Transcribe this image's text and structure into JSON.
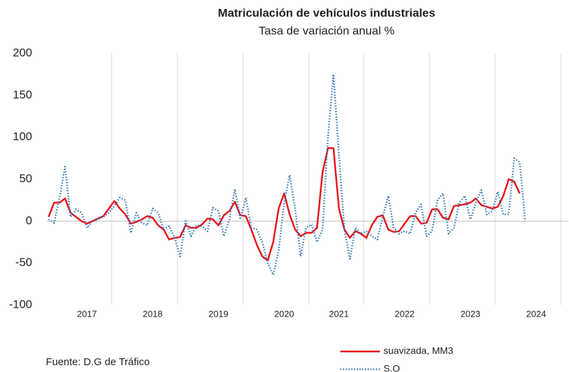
{
  "chart_data": {
    "type": "line",
    "title": "Matriculación de vehículos industriales",
    "subtitle": "Tasa de variación anual %",
    "source": "Fuente: D.G de Tráfico",
    "categories": [
      null,
      null,
      null,
      null,
      null,
      null,
      null,
      "2017",
      null,
      null,
      null,
      null,
      null,
      null,
      null,
      null,
      null,
      null,
      null,
      "2018",
      null,
      null,
      null,
      null,
      null,
      null,
      null,
      null,
      null,
      null,
      null,
      "2019",
      null,
      null,
      null,
      null,
      null,
      null,
      null,
      null,
      null,
      null,
      null,
      "2020",
      null,
      null,
      null,
      null,
      null,
      null,
      null,
      null,
      null,
      "2021",
      null,
      null,
      null,
      null,
      null,
      null,
      null,
      null,
      null,
      null,
      null,
      "2022",
      null,
      null,
      null,
      null,
      null,
      null,
      null,
      null,
      null,
      null,
      null,
      "2023",
      null,
      null,
      null,
      null,
      null,
      null,
      null,
      null,
      null,
      null,
      null,
      "2024"
    ],
    "series": [
      {
        "name": "suavizada, MM3",
        "color": "#e8141b",
        "style": "solid",
        "values": [
          5,
          22,
          22,
          27,
          10,
          5,
          0,
          -3,
          0,
          3,
          6,
          15,
          24,
          15,
          8,
          -3,
          -1,
          2,
          6,
          4,
          -5,
          -10,
          -22,
          -20,
          -19,
          -5,
          -8,
          -8,
          -4,
          3,
          2,
          -5,
          7,
          12,
          23,
          7,
          6,
          -10,
          -28,
          -42,
          -47,
          -25,
          15,
          33,
          8,
          -10,
          -18,
          -14,
          -14,
          -8,
          58,
          87,
          87,
          15,
          -10,
          -20,
          -12,
          -15,
          -20,
          -5,
          5,
          7,
          -10,
          -13,
          -12,
          -3,
          6,
          6,
          -3,
          -2,
          14,
          14,
          4,
          2,
          18,
          19,
          20,
          22,
          27,
          19,
          17,
          15,
          17,
          30,
          50,
          47,
          33,
          null,
          null,
          null
        ]
      },
      {
        "name": "S.O",
        "color": "#2e75b6",
        "style": "dotted",
        "values": [
          2,
          -2,
          28,
          65,
          5,
          14,
          10,
          -8,
          0,
          2,
          5,
          10,
          18,
          28,
          25,
          -14,
          10,
          -2,
          -5,
          15,
          10,
          -10,
          -6,
          -20,
          -42,
          0,
          -18,
          -5,
          -6,
          -12,
          16,
          12,
          -18,
          2,
          38,
          2,
          28,
          -8,
          -10,
          -25,
          -50,
          -64,
          -35,
          22,
          55,
          15,
          -42,
          -8,
          -4,
          -25,
          -10,
          100,
          175,
          80,
          -10,
          -45,
          -8,
          -15,
          -12,
          -18,
          -22,
          5,
          30,
          -8,
          -15,
          -12,
          -15,
          10,
          20,
          -18,
          -12,
          25,
          33,
          -15,
          -8,
          22,
          30,
          2,
          22,
          37,
          8,
          12,
          35,
          8,
          8,
          75,
          70,
          0,
          null,
          null
        ]
      }
    ],
    "ylim": [
      -100,
      200
    ],
    "yticks": [
      -100,
      -50,
      0,
      50,
      100,
      150,
      200
    ]
  }
}
